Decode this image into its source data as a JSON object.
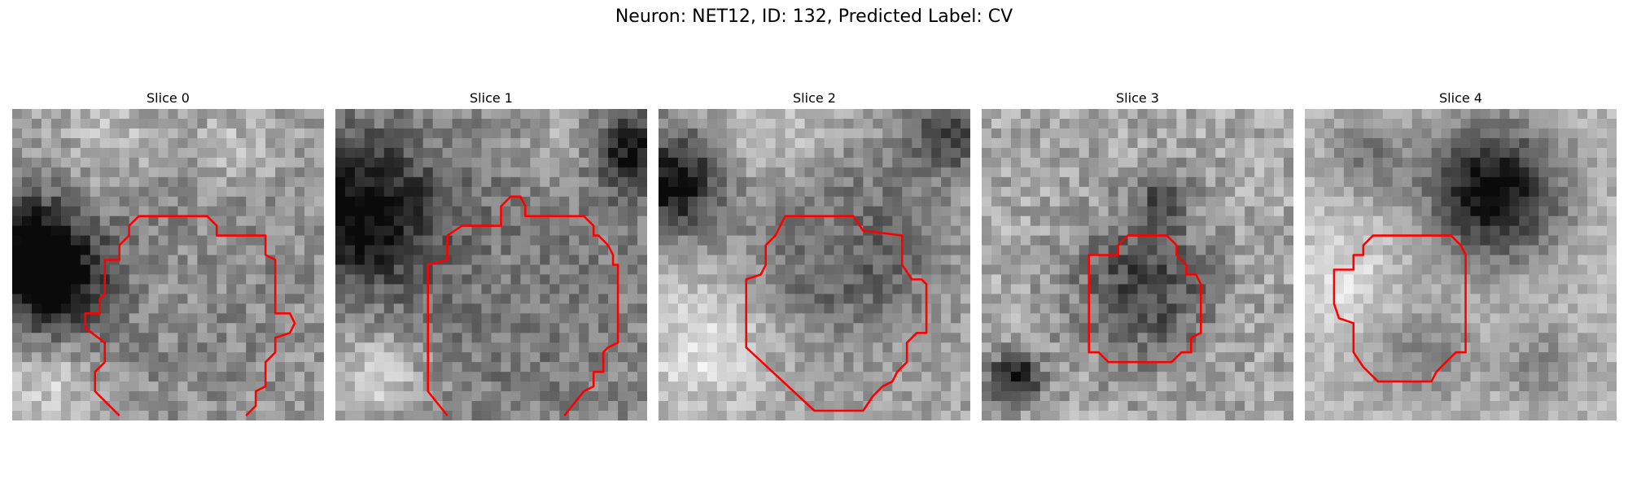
{
  "figure": {
    "title": "Neuron: NET12, ID: 132, Predicted Label: CV"
  },
  "slices": [
    {
      "label": "Slice 0"
    },
    {
      "label": "Slice 1"
    },
    {
      "label": "Slice 2"
    },
    {
      "label": "Slice 3"
    },
    {
      "label": "Slice 4"
    }
  ],
  "colors": {
    "contour": "#ff0000",
    "background": "#ffffff"
  }
}
